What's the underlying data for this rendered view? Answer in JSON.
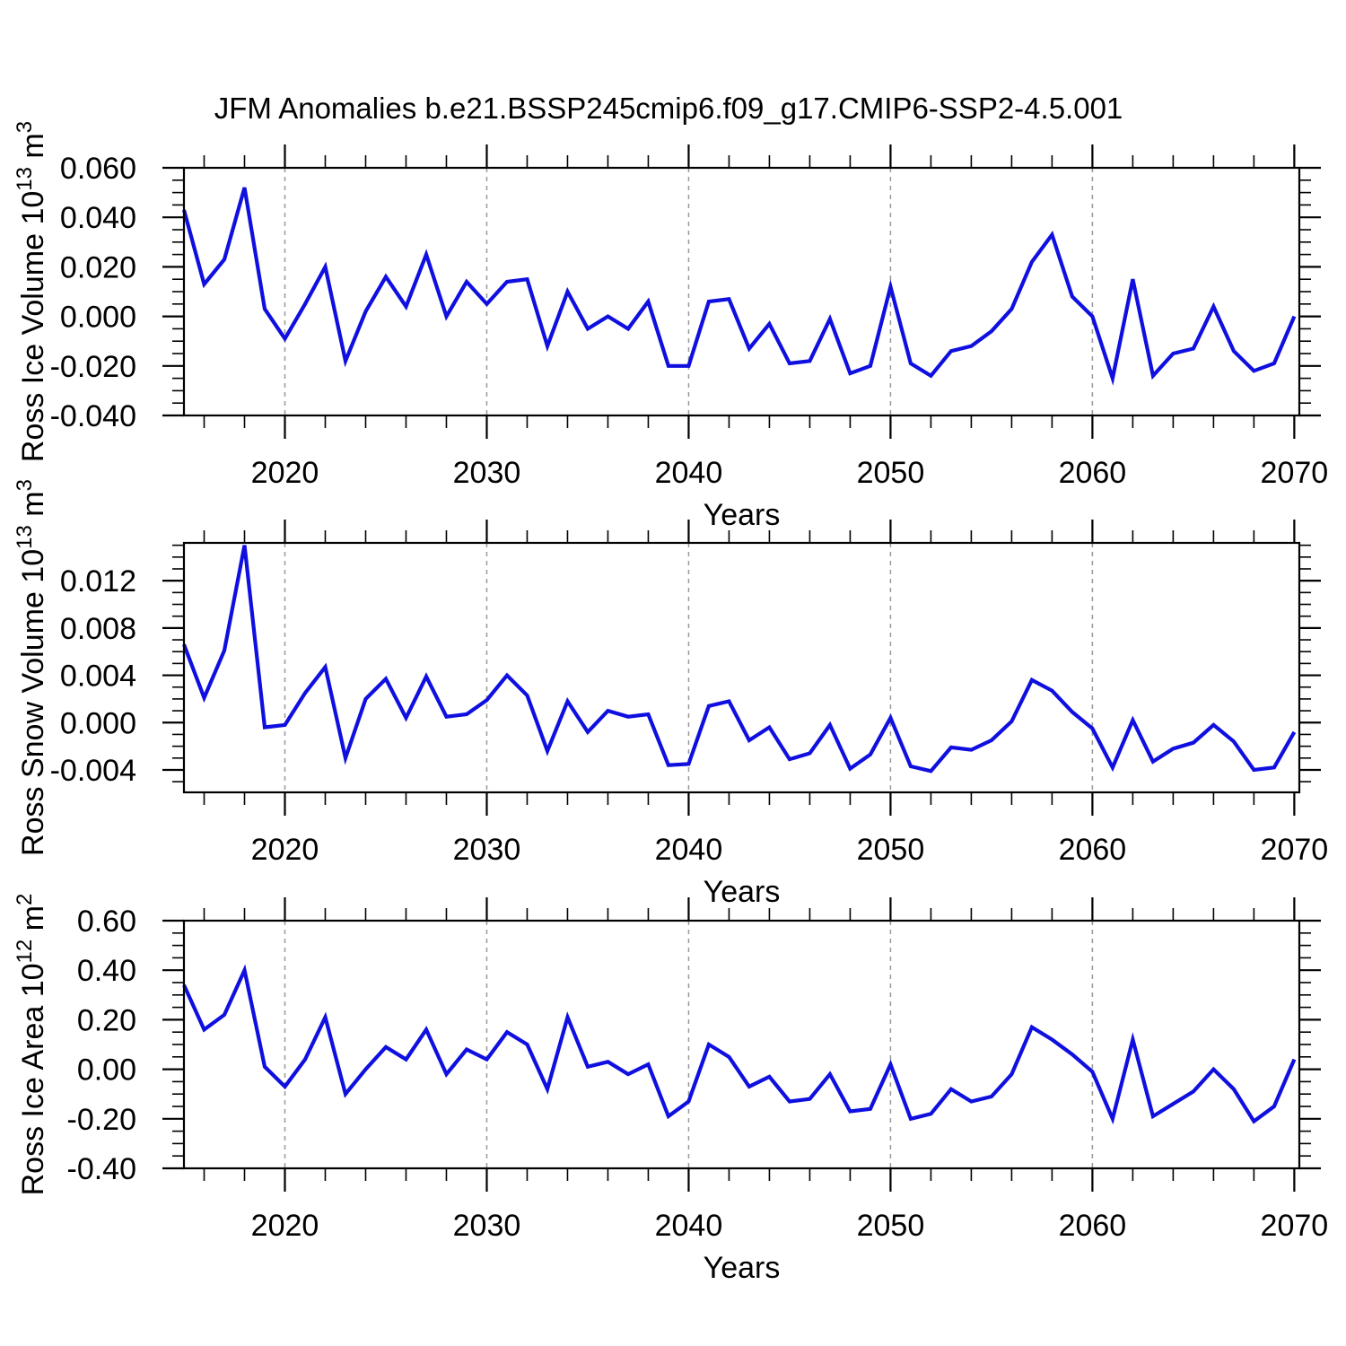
{
  "title": "JFM Anomalies b.e21.BSSP245cmip6.f09_g17.CMIP6-SSP2-4.5.001",
  "colors": {
    "line": "#0f0fe0",
    "frame": "#000000",
    "grid": "#999999",
    "text": "#000000"
  },
  "chart_data": {
    "type": "line",
    "title": "JFM Anomalies b.e21.BSSP245cmip6.f09_g17.CMIP6-SSP2-4.5.001",
    "legend": "none",
    "grid": "dashed vertical gridlines at decade years",
    "x": {
      "label": "Years",
      "xlim": [
        2015,
        2070.25
      ],
      "major_ticks": [
        2020,
        2030,
        2040,
        2050,
        2060,
        2070
      ],
      "minor_tick_step": 2,
      "gridline_years": [
        2020,
        2030,
        2040,
        2050,
        2060
      ],
      "years": [
        2015,
        2016,
        2017,
        2018,
        2019,
        2020,
        2021,
        2022,
        2023,
        2024,
        2025,
        2026,
        2027,
        2028,
        2029,
        2030,
        2031,
        2032,
        2033,
        2034,
        2035,
        2036,
        2037,
        2038,
        2039,
        2040,
        2041,
        2042,
        2043,
        2044,
        2045,
        2046,
        2047,
        2048,
        2049,
        2050,
        2051,
        2052,
        2053,
        2054,
        2055,
        2056,
        2057,
        2058,
        2059,
        2060,
        2061,
        2062,
        2063,
        2064,
        2065,
        2066,
        2067,
        2068,
        2069,
        2070
      ]
    },
    "panels": [
      {
        "name": "ross-ice-volume",
        "ylabel": "Ross Ice Volume 10^13 m^3",
        "ylabel_parts": [
          {
            "t": "Ross Ice Volume 10"
          },
          {
            "t": "13",
            "sup": true
          },
          {
            "t": " m"
          },
          {
            "t": "3",
            "sup": true
          }
        ],
        "ylim": [
          -0.04,
          0.06
        ],
        "ymajor_step": 0.02,
        "yminor_step": 0.005,
        "ymajor": [
          {
            "v": 0.06,
            "label": "0.060"
          },
          {
            "v": 0.04,
            "label": "0.040"
          },
          {
            "v": 0.02,
            "label": "0.020"
          },
          {
            "v": 0.0,
            "label": "0.000"
          },
          {
            "v": -0.02,
            "label": "-0.020"
          },
          {
            "v": -0.04,
            "label": "-0.040"
          }
        ],
        "values": [
          0.043,
          0.013,
          0.023,
          0.052,
          0.003,
          -0.009,
          0.005,
          0.02,
          -0.018,
          0.002,
          0.016,
          0.004,
          0.025,
          0.0,
          0.014,
          0.005,
          0.014,
          0.015,
          -0.012,
          0.01,
          -0.005,
          0.0,
          -0.005,
          0.006,
          -0.02,
          -0.02,
          0.006,
          0.007,
          -0.013,
          -0.003,
          -0.019,
          -0.018,
          -0.001,
          -0.023,
          -0.02,
          0.012,
          -0.019,
          -0.024,
          -0.014,
          -0.012,
          -0.006,
          0.003,
          0.022,
          0.033,
          0.008,
          0.0,
          -0.025,
          0.015,
          -0.024,
          -0.015,
          -0.013,
          0.004,
          -0.014,
          -0.022,
          -0.019,
          0.0
        ]
      },
      {
        "name": "ross-snow-volume",
        "ylabel": "Ross Snow Volume 10^13 m^3",
        "ylabel_parts": [
          {
            "t": "Ross Snow Volume 10"
          },
          {
            "t": "13",
            "sup": true
          },
          {
            "t": " m"
          },
          {
            "t": "3",
            "sup": true
          }
        ],
        "ylim": [
          -0.0059,
          0.0152
        ],
        "ymajor_step": 0.004,
        "yminor_step": 0.001,
        "ymajor": [
          {
            "v": 0.012,
            "label": "0.012"
          },
          {
            "v": 0.008,
            "label": "0.008"
          },
          {
            "v": 0.004,
            "label": "0.004"
          },
          {
            "v": 0.0,
            "label": "0.000"
          },
          {
            "v": -0.004,
            "label": "-0.004"
          }
        ],
        "values": [
          0.0066,
          0.0021,
          0.0061,
          0.015,
          -0.0004,
          -0.0002,
          0.0025,
          0.0047,
          -0.003,
          0.002,
          0.0037,
          0.0004,
          0.0039,
          0.0005,
          0.0007,
          0.0019,
          0.004,
          0.0023,
          -0.0024,
          0.0018,
          -0.0008,
          0.001,
          0.0005,
          0.0007,
          -0.0036,
          -0.0035,
          0.0014,
          0.0018,
          -0.0015,
          -0.0004,
          -0.0031,
          -0.0026,
          -0.0002,
          -0.0039,
          -0.0027,
          0.0004,
          -0.0037,
          -0.0041,
          -0.0021,
          -0.0023,
          -0.0015,
          0.0001,
          0.0036,
          0.0027,
          0.0009,
          -0.0005,
          -0.0038,
          0.0002,
          -0.0033,
          -0.0022,
          -0.0017,
          -0.0002,
          -0.0016,
          -0.004,
          -0.0038,
          -0.0008
        ]
      },
      {
        "name": "ross-ice-area",
        "ylabel": "Ross Ice Area 10^12 m^2",
        "ylabel_parts": [
          {
            "t": "Ross Ice Area 10"
          },
          {
            "t": "12",
            "sup": true
          },
          {
            "t": " m"
          },
          {
            "t": "2",
            "sup": true
          }
        ],
        "ylim": [
          -0.4,
          0.6
        ],
        "ymajor_step": 0.2,
        "yminor_step": 0.05,
        "ymajor": [
          {
            "v": 0.6,
            "label": "0.60"
          },
          {
            "v": 0.4,
            "label": "0.40"
          },
          {
            "v": 0.2,
            "label": "0.20"
          },
          {
            "v": 0.0,
            "label": "0.00"
          },
          {
            "v": -0.2,
            "label": "-0.20"
          },
          {
            "v": -0.4,
            "label": "-0.40"
          }
        ],
        "values": [
          0.34,
          0.16,
          0.22,
          0.4,
          0.01,
          -0.07,
          0.04,
          0.21,
          -0.1,
          0.0,
          0.09,
          0.04,
          0.16,
          -0.02,
          0.08,
          0.04,
          0.15,
          0.1,
          -0.08,
          0.21,
          0.01,
          0.03,
          -0.02,
          0.02,
          -0.19,
          -0.13,
          0.1,
          0.05,
          -0.07,
          -0.03,
          -0.13,
          -0.12,
          -0.02,
          -0.17,
          -0.16,
          0.02,
          -0.2,
          -0.18,
          -0.08,
          -0.13,
          -0.11,
          -0.02,
          0.17,
          0.12,
          0.06,
          -0.01,
          -0.2,
          0.12,
          -0.19,
          -0.14,
          -0.09,
          0.0,
          -0.08,
          -0.21,
          -0.15,
          0.04
        ]
      }
    ]
  }
}
